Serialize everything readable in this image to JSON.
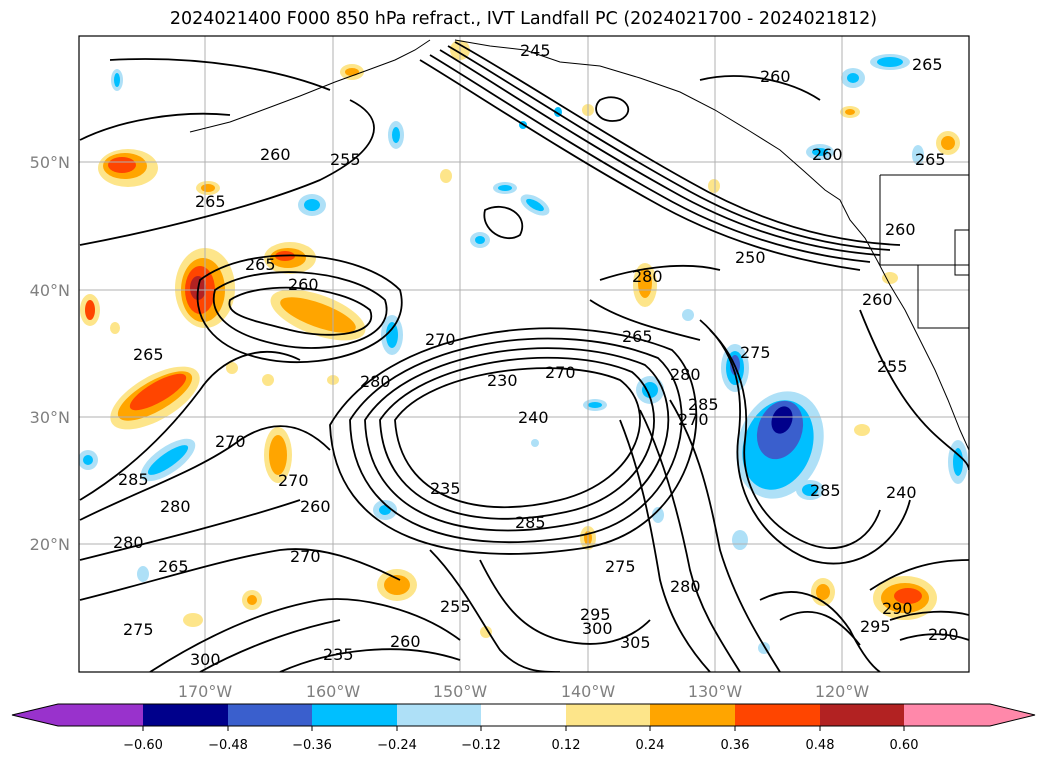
{
  "title": "2024021400 F000 850 hPa refract., IVT Landfall PC (2024021700 - 2024021812)",
  "lat_labels": [
    "50°N",
    "40°N",
    "30°N",
    "20°N"
  ],
  "lon_labels": [
    "170°W",
    "160°W",
    "150°W",
    "140°W",
    "130°W",
    "120°W"
  ],
  "colorbar": {
    "tick_labels": [
      "−0.60",
      "−0.48",
      "−0.36",
      "−0.24",
      "−0.12",
      "0.12",
      "0.24",
      "0.36",
      "0.48",
      "0.60"
    ],
    "colors": [
      "#9932cc",
      "#00008b",
      "#3a5fcd",
      "#00bfff",
      "#aee0f7",
      "#ffffff",
      "#fde58a",
      "#ffa500",
      "#ff4500",
      "#b22222",
      "#ff88aa"
    ]
  },
  "contour_labels": [
    "245",
    "260",
    "265",
    "255",
    "260",
    "265",
    "260",
    "265",
    "280",
    "250",
    "260",
    "260",
    "255",
    "265",
    "270",
    "265",
    "260",
    "270",
    "275",
    "280",
    "230",
    "270",
    "240",
    "265",
    "280",
    "285",
    "270",
    "240",
    "280",
    "285",
    "270",
    "285",
    "280",
    "260",
    "265",
    "270",
    "275",
    "280",
    "290",
    "290",
    "295",
    "275",
    "295",
    "300",
    "305",
    "300",
    "235",
    "255",
    "260",
    "285",
    "235"
  ]
}
